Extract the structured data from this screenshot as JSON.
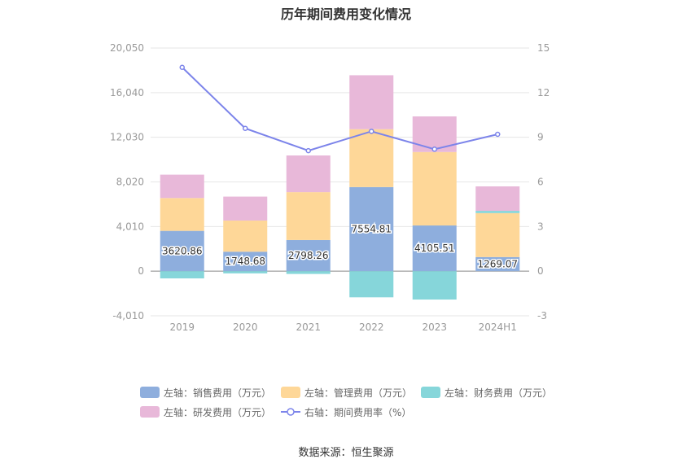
{
  "page": {
    "title": "历年期间费用变化情况",
    "source": "数据来源：恒生聚源"
  },
  "chart_data": {
    "type": "bar",
    "title": "历年期间费用变化情况",
    "categories": [
      "2019",
      "2020",
      "2021",
      "2022",
      "2023",
      "2024H1"
    ],
    "left_axis": {
      "min": -4010,
      "max": 20050,
      "ticks": [
        "-4,010",
        "0",
        "4,010",
        "8,020",
        "12,030",
        "16,040",
        "20,050"
      ],
      "tick_values": [
        -4010,
        0,
        4010,
        8020,
        12030,
        16040,
        20050
      ]
    },
    "right_axis": {
      "min": -3,
      "max": 15,
      "ticks": [
        "-3",
        "0",
        "3",
        "6",
        "9",
        "12",
        "15"
      ],
      "tick_values": [
        -3,
        0,
        3,
        6,
        9,
        12,
        15
      ]
    },
    "grid": true,
    "legend_position": "bottom",
    "series": [
      {
        "name": "左轴：销售费用（万元）",
        "type": "bar",
        "axis": "left",
        "color": "#8eaedd",
        "values": [
          3620.86,
          1748.68,
          2798.26,
          7554.81,
          4105.51,
          1269.07
        ],
        "labels": [
          "3620.86",
          "1748.68",
          "2798.26",
          "7554.81",
          "4105.51",
          "1269.07"
        ]
      },
      {
        "name": "左轴：管理费用（万元）",
        "type": "bar",
        "axis": "left",
        "color": "#fed798",
        "values": [
          2950,
          2800,
          4300,
          5200,
          6600,
          3950
        ]
      },
      {
        "name": "左轴：财务费用（万元）",
        "type": "bar",
        "axis": "left",
        "color": "#86d6da",
        "values": [
          -650,
          -200,
          -250,
          -2350,
          -2550,
          200
        ]
      },
      {
        "name": "左轴：研发费用（万元）",
        "type": "bar",
        "axis": "left",
        "color": "#e8b8d9",
        "values": [
          2100,
          2150,
          3300,
          4850,
          3200,
          2200
        ]
      },
      {
        "name": "右轴：期间费用率（%）",
        "type": "line",
        "axis": "right",
        "color": "#7c84ea",
        "values": [
          13.7,
          9.6,
          8.1,
          9.4,
          8.2,
          9.2
        ]
      }
    ]
  }
}
